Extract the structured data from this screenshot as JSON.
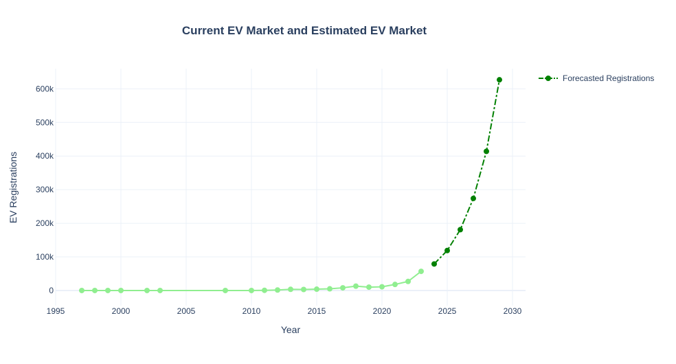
{
  "chart_data": {
    "type": "line",
    "title": "Current EV Market and Estimated EV Market",
    "xlabel": "Year",
    "ylabel": "EV Registrations",
    "xlim": [
      1995,
      2031
    ],
    "ylim": [
      -45000,
      660000
    ],
    "x_ticks": [
      1995,
      2000,
      2005,
      2010,
      2015,
      2020,
      2025,
      2030
    ],
    "y_ticks": [
      0,
      100000,
      200000,
      300000,
      400000,
      500000,
      600000
    ],
    "x_tick_labels": [
      "1995",
      "2000",
      "2005",
      "2010",
      "2015",
      "2020",
      "2025",
      "2030"
    ],
    "y_tick_labels": [
      "0",
      "100k",
      "200k",
      "300k",
      "400k",
      "500k",
      "600k"
    ],
    "grid": true,
    "legend_position": "top-right",
    "series": [
      {
        "key": "historical",
        "color": "#90ee90",
        "line_style": "solid",
        "marker": "circle",
        "show_in_legend": false,
        "x": [
          1997,
          1998,
          1999,
          2000,
          2002,
          2003,
          2008,
          2010,
          2011,
          2012,
          2013,
          2014,
          2015,
          2016,
          2017,
          2018,
          2019,
          2020,
          2021,
          2022,
          2023
        ],
        "y": [
          0,
          0,
          0,
          0,
          0,
          0,
          0,
          0,
          500,
          1500,
          3500,
          3000,
          4000,
          5000,
          8000,
          13000,
          10000,
          11000,
          18000,
          27000,
          57000
        ]
      },
      {
        "key": "forecast",
        "name": "Forecasted Registrations",
        "color": "#008000",
        "line_style": "dashdot",
        "marker": "circle",
        "show_in_legend": true,
        "x": [
          2024,
          2025,
          2026,
          2027,
          2028,
          2029
        ],
        "y": [
          79000,
          119000,
          181000,
          274000,
          414000,
          627000
        ]
      }
    ]
  }
}
